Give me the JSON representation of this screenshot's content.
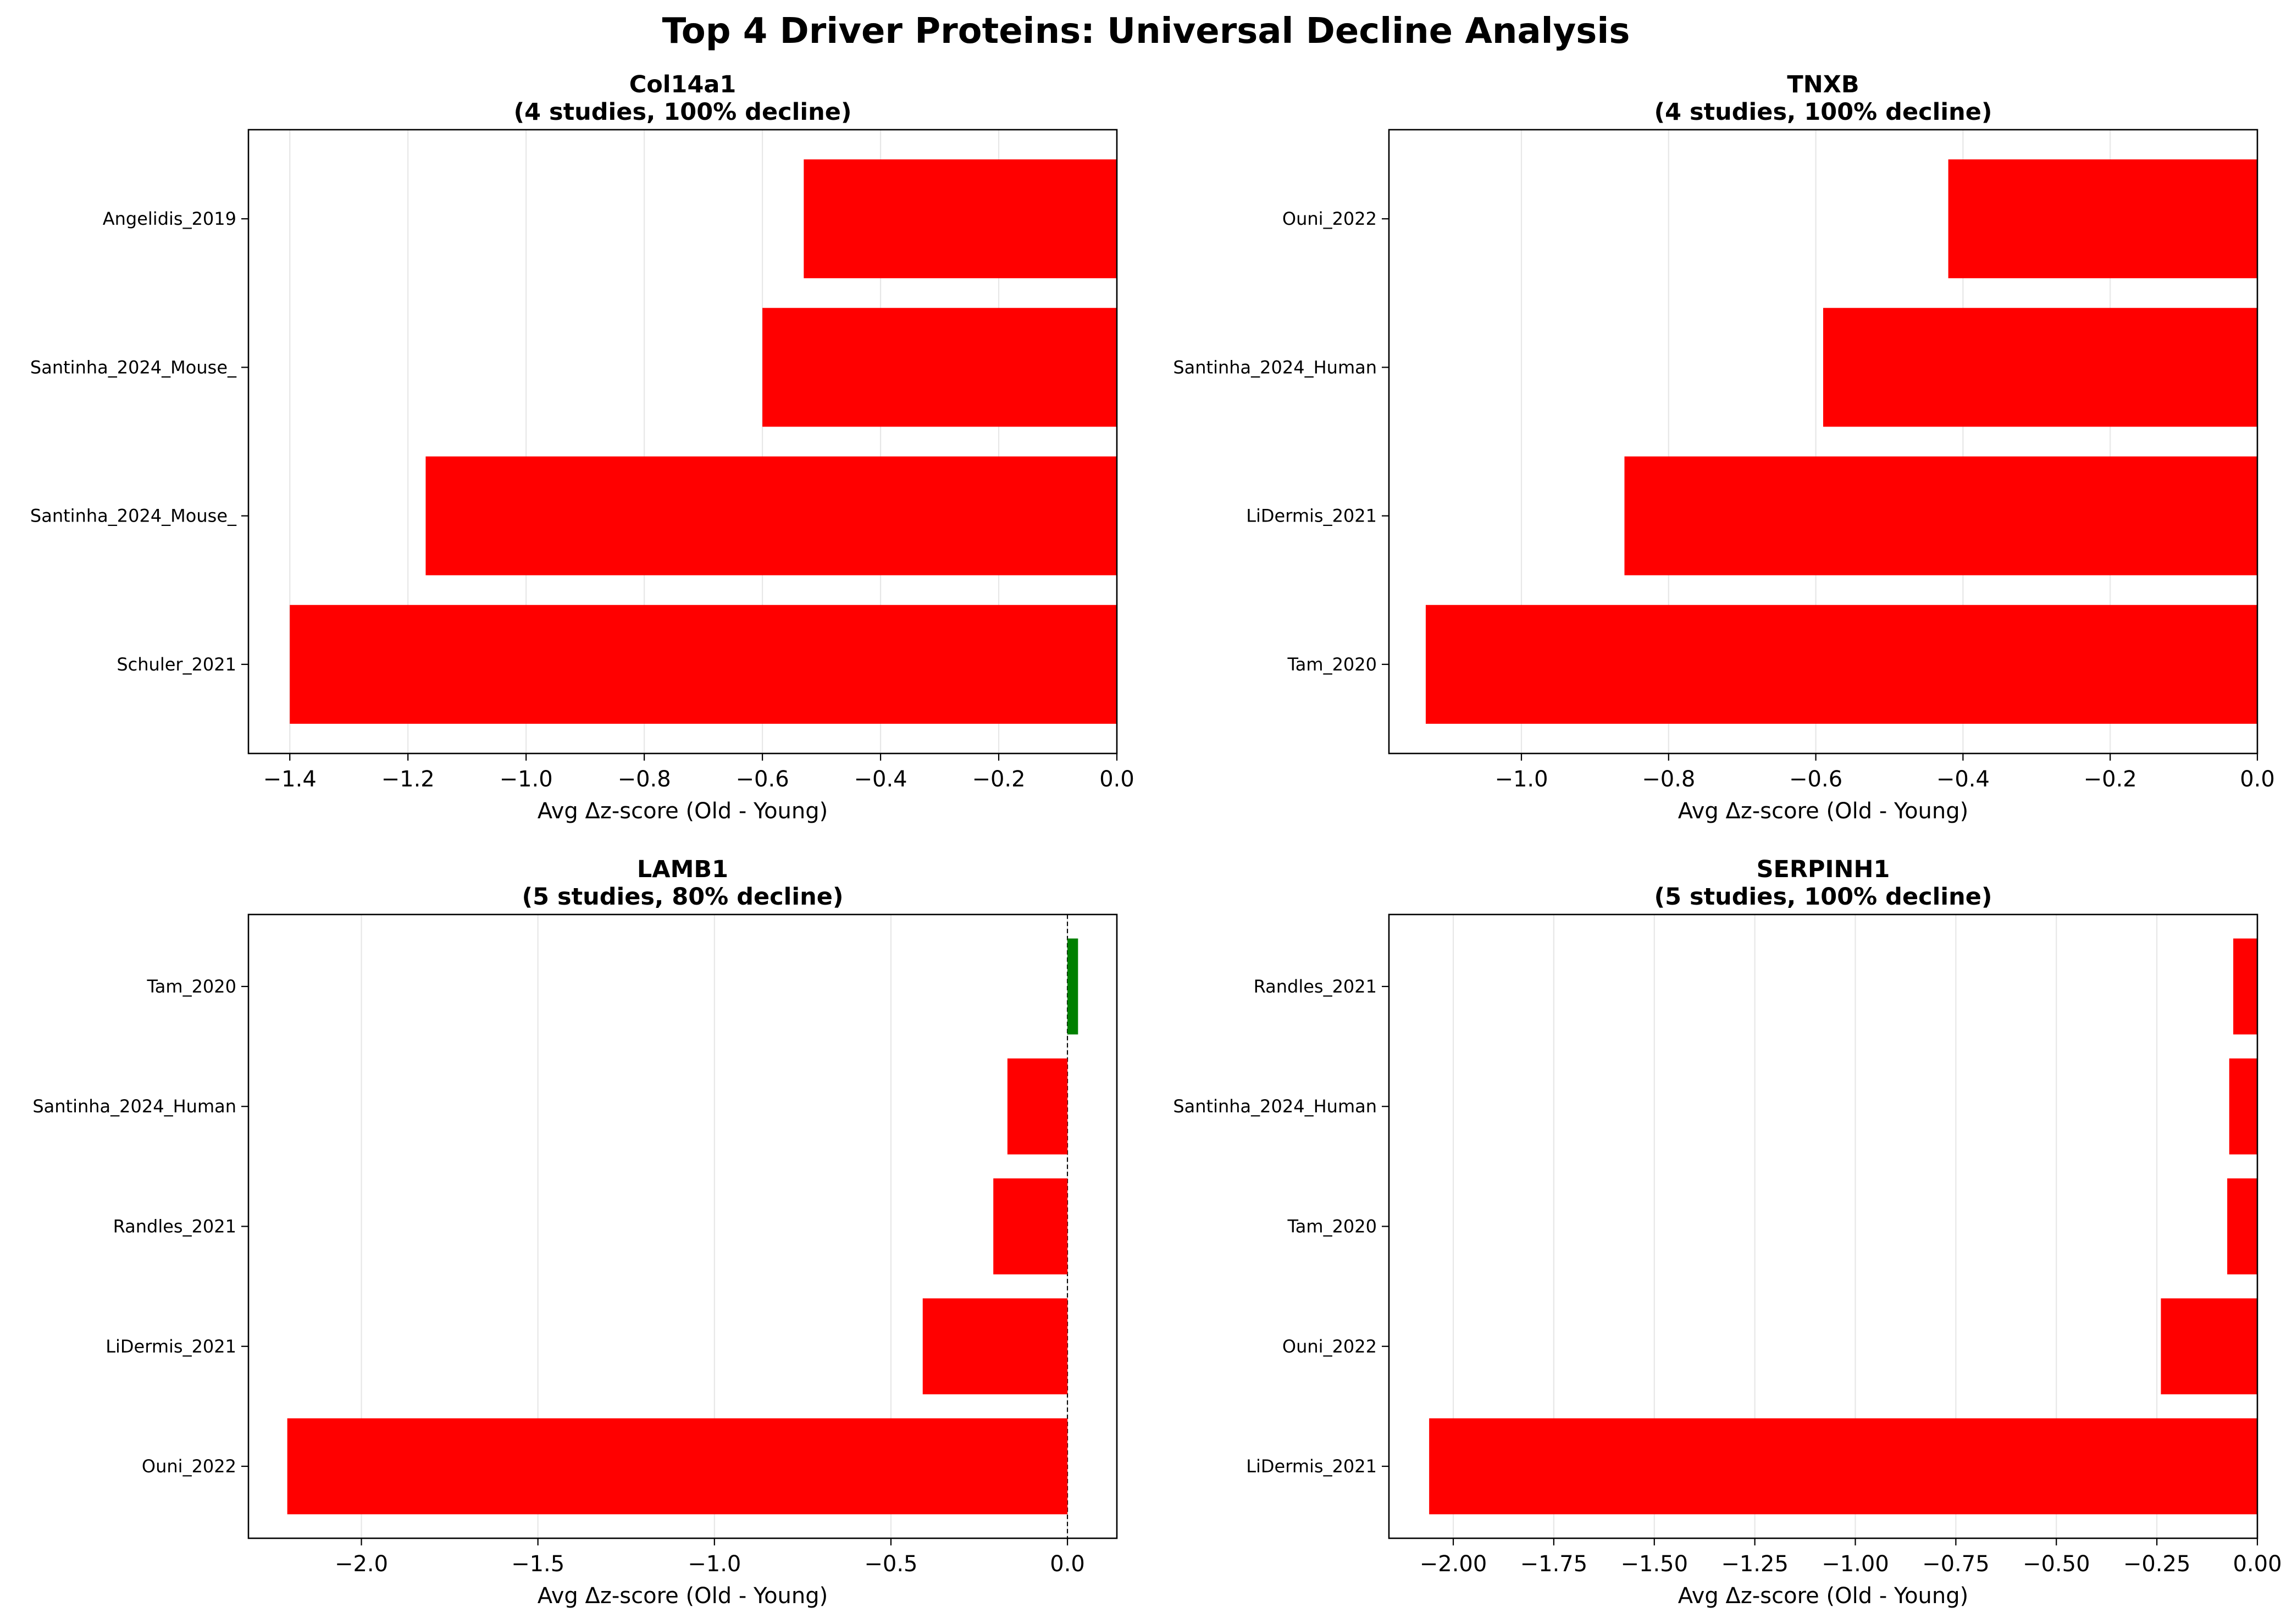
{
  "figure": {
    "title": "Top 4 Driver Proteins: Universal Decline Analysis",
    "colors": {
      "decline": "#ff0000",
      "increase": "#008000"
    }
  },
  "chart_data": [
    {
      "type": "bar",
      "orientation": "horizontal",
      "title_line1": "Col14a1",
      "title_line2": "(4 studies, 100% decline)",
      "xlabel": "Avg Δz-score (Old - Young)",
      "xlim": [
        -1.47,
        0.0
      ],
      "xticks": [
        -1.4,
        -1.2,
        -1.0,
        -0.8,
        -0.6,
        -0.4,
        -0.2,
        0.0
      ],
      "xtick_labels": [
        "−1.4",
        "−1.2",
        "−1.0",
        "−0.8",
        "−0.6",
        "−0.4",
        "−0.2",
        "0.0"
      ],
      "grid": "x",
      "zero_line": false,
      "categories": [
        "Angelidis_2019",
        "Santinha_2024_Mouse_",
        "Santinha_2024_Mouse_",
        "Schuler_2021"
      ],
      "values": [
        -0.53,
        -0.6,
        -1.17,
        -1.4
      ]
    },
    {
      "type": "bar",
      "orientation": "horizontal",
      "title_line1": "TNXB",
      "title_line2": "(4 studies, 100% decline)",
      "xlabel": "Avg Δz-score (Old - Young)",
      "xlim": [
        -1.18,
        0.0
      ],
      "xticks": [
        -1.0,
        -0.8,
        -0.6,
        -0.4,
        -0.2,
        0.0
      ],
      "xtick_labels": [
        "−1.0",
        "−0.8",
        "−0.6",
        "−0.4",
        "−0.2",
        "0.0"
      ],
      "grid": "x",
      "zero_line": false,
      "categories": [
        "Ouni_2022",
        "Santinha_2024_Human",
        "LiDermis_2021",
        "Tam_2020"
      ],
      "values": [
        -0.42,
        -0.59,
        -0.86,
        -1.13
      ]
    },
    {
      "type": "bar",
      "orientation": "horizontal",
      "title_line1": "LAMB1",
      "title_line2": "(5 studies, 80% decline)",
      "xlabel": "Avg Δz-score (Old - Young)",
      "xlim": [
        -2.32,
        0.14
      ],
      "xticks": [
        -2.0,
        -1.5,
        -1.0,
        -0.5,
        0.0
      ],
      "xtick_labels": [
        "−2.0",
        "−1.5",
        "−1.0",
        "−0.5",
        "0.0"
      ],
      "grid": "x",
      "zero_line": true,
      "categories": [
        "Tam_2020",
        "Santinha_2024_Human",
        "Randles_2021",
        "LiDermis_2021",
        "Ouni_2022"
      ],
      "values": [
        0.03,
        -0.17,
        -0.21,
        -0.41,
        -2.21
      ]
    },
    {
      "type": "bar",
      "orientation": "horizontal",
      "title_line1": "SERPINH1",
      "title_line2": "(5 studies, 100% decline)",
      "xlabel": "Avg Δz-score (Old - Young)",
      "xlim": [
        -2.16,
        0.0
      ],
      "xticks": [
        -2.0,
        -1.75,
        -1.5,
        -1.25,
        -1.0,
        -0.75,
        -0.5,
        -0.25,
        0.0
      ],
      "xtick_labels": [
        "−2.00",
        "−1.75",
        "−1.50",
        "−1.25",
        "−1.00",
        "−0.75",
        "−0.50",
        "−0.25",
        "0.00"
      ],
      "grid": "x",
      "zero_line": false,
      "categories": [
        "Randles_2021",
        "Santinha_2024_Human",
        "Tam_2020",
        "Ouni_2022",
        "LiDermis_2021"
      ],
      "values": [
        -0.06,
        -0.07,
        -0.075,
        -0.24,
        -2.06
      ]
    }
  ]
}
